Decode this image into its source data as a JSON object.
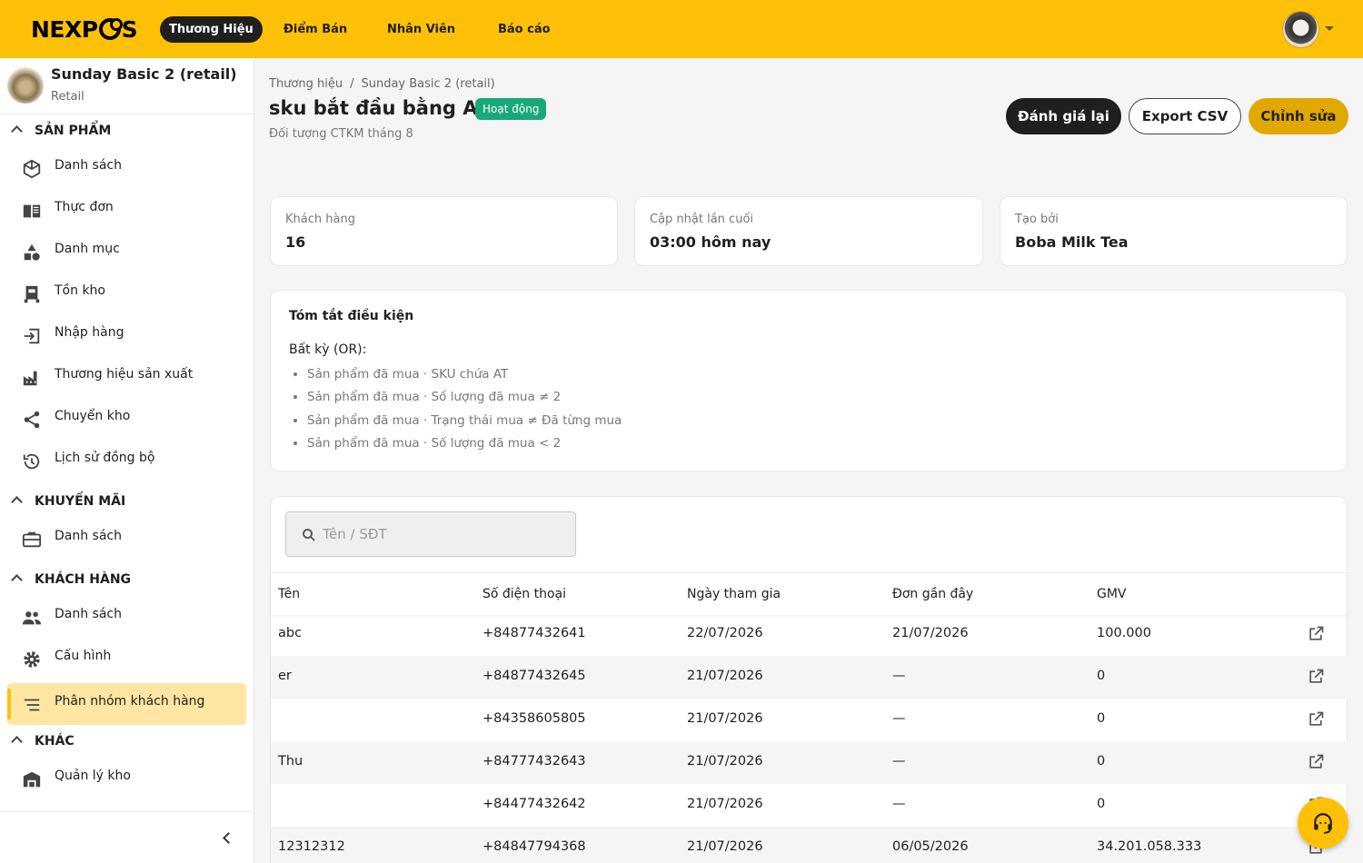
{
  "topbar": {
    "logo": "NEXPOS",
    "nav": [
      "Thương Hiệu",
      "Điểm Bán",
      "Nhân Viên",
      "Báo cáo"
    ],
    "accent": "#ffc107"
  },
  "sidebar": {
    "store": {
      "name": "Sunday Basic 2 (retail)",
      "type": "Retail"
    },
    "sections": [
      {
        "label": "SẢN PHẨM",
        "items": [
          {
            "label": "Danh sách",
            "icon": "box-icon"
          },
          {
            "label": "Thực đơn",
            "icon": "menu-book-icon"
          },
          {
            "label": "Danh mục",
            "icon": "category-icon"
          },
          {
            "label": "Tồn kho",
            "icon": "inventory-icon"
          },
          {
            "label": "Nhập hàng",
            "icon": "import-icon"
          },
          {
            "label": "Thương hiệu sản xuất",
            "icon": "factory-icon"
          },
          {
            "label": "Chuyển kho",
            "icon": "share-icon"
          },
          {
            "label": "Lịch sử đồng bộ",
            "icon": "history-icon"
          }
        ]
      },
      {
        "label": "KHUYẾN MÃI",
        "items": [
          {
            "label": "Danh sách",
            "icon": "gift-card-icon"
          }
        ]
      },
      {
        "label": "KHÁCH HÀNG",
        "items": [
          {
            "label": "Danh sách",
            "icon": "people-icon"
          },
          {
            "label": "Cấu hình",
            "icon": "gear-icon"
          },
          {
            "label": "Phân nhóm khách hàng",
            "icon": "segment-icon",
            "active": true
          }
        ]
      },
      {
        "label": "KHÁC",
        "items": [
          {
            "label": "Quản lý kho",
            "icon": "warehouse-icon"
          }
        ]
      }
    ]
  },
  "breadcrumb": [
    "Thương hiệu",
    "Sunday Basic 2 (retail)"
  ],
  "page": {
    "title": "sku bắt đầu bằng AT",
    "status": "Hoạt động",
    "subtitle": "Đối tượng CTKM tháng 8",
    "actions": {
      "reevaluate": "Đánh giá lại",
      "export": "Export CSV",
      "edit": "Chỉnh sửa"
    }
  },
  "stats": [
    {
      "label": "Khách hàng",
      "value": "16"
    },
    {
      "label": "Cập nhật lần cuối",
      "value": "03:00 hôm nay"
    },
    {
      "label": "Tạo bởi",
      "value": "Boba Milk Tea"
    }
  ],
  "summary": {
    "title": "Tóm tắt điều kiện",
    "mode": "Bất kỳ (OR):",
    "conditions": [
      "Sản phẩm đã mua · SKU chứa AT",
      "Sản phẩm đã mua · Số lượng đã mua ≠ 2",
      "Sản phẩm đã mua · Trạng thái mua ≠ Đã từng mua",
      "Sản phẩm đã mua · Số lượng đã mua < 2"
    ]
  },
  "table": {
    "search_placeholder": "Tên / SĐT",
    "columns": [
      "Tên",
      "Số điện thoại",
      "Ngày tham gia",
      "Đơn gần đây",
      "GMV"
    ],
    "rows": [
      [
        "abc",
        "+84877432641",
        "22/07/2026",
        "21/07/2026",
        "100.000"
      ],
      [
        "er",
        "+84877432645",
        "21/07/2026",
        "—",
        "0"
      ],
      [
        "",
        "+84358605805",
        "21/07/2026",
        "—",
        "0"
      ],
      [
        "Thu",
        "+84777432643",
        "21/07/2026",
        "—",
        "0"
      ],
      [
        "",
        "+84477432642",
        "21/07/2026",
        "—",
        "0"
      ],
      [
        "12312312",
        "+84847794368",
        "21/07/2026",
        "06/05/2026",
        "34.201.058.333"
      ]
    ]
  }
}
